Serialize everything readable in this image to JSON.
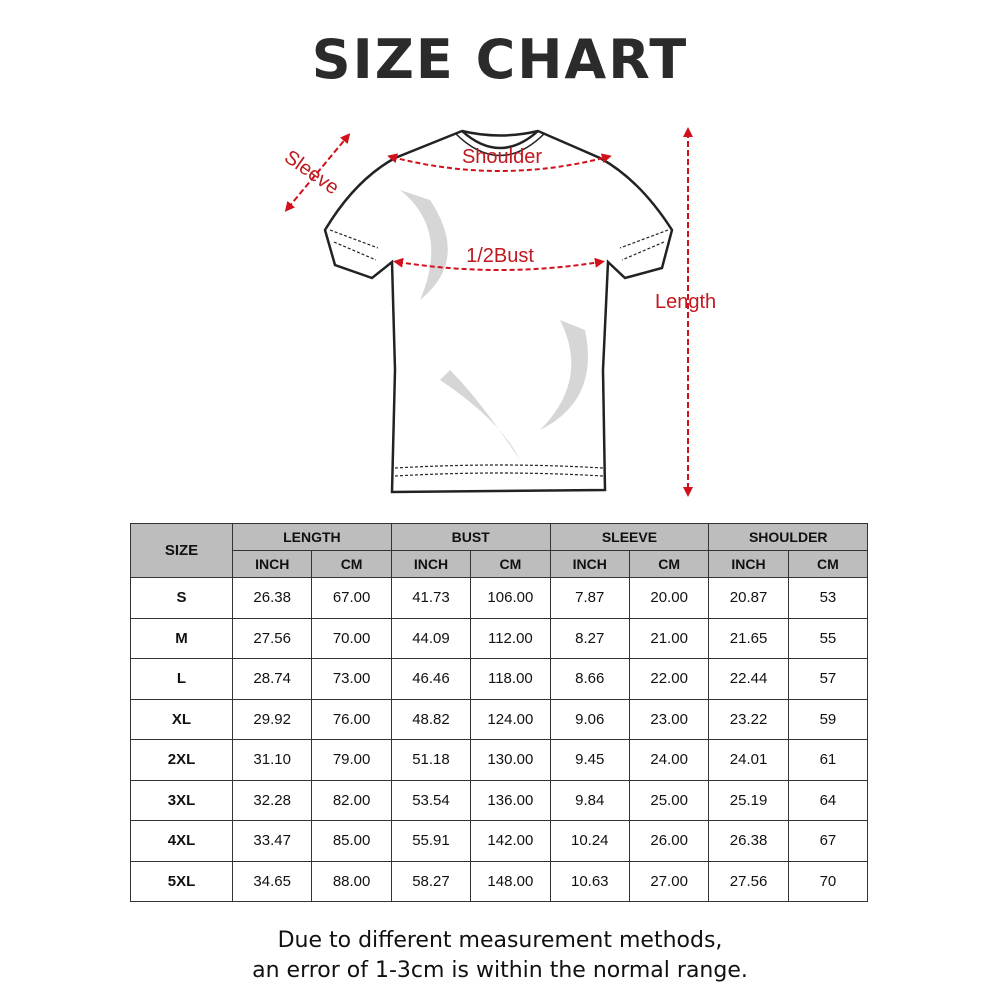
{
  "title": "SIZE CHART",
  "diagram": {
    "sleeve": "Sleeve",
    "shoulder": "Shoulder",
    "bust": "1/2Bust",
    "length": "Length",
    "accent": "#d0101a"
  },
  "table": {
    "size_header": "SIZE",
    "groups": [
      "LENGTH",
      "BUST",
      "SLEEVE",
      "SHOULDER"
    ],
    "units": [
      "INCH",
      "CM",
      "INCH",
      "CM",
      "INCH",
      "CM",
      "INCH",
      "CM"
    ],
    "rows": [
      [
        "S",
        "26.38",
        "67.00",
        "41.73",
        "106.00",
        "7.87",
        "20.00",
        "20.87",
        "53"
      ],
      [
        "M",
        "27.56",
        "70.00",
        "44.09",
        "112.00",
        "8.27",
        "21.00",
        "21.65",
        "55"
      ],
      [
        "L",
        "28.74",
        "73.00",
        "46.46",
        "118.00",
        "8.66",
        "22.00",
        "22.44",
        "57"
      ],
      [
        "XL",
        "29.92",
        "76.00",
        "48.82",
        "124.00",
        "9.06",
        "23.00",
        "23.22",
        "59"
      ],
      [
        "2XL",
        "31.10",
        "79.00",
        "51.18",
        "130.00",
        "9.45",
        "24.00",
        "24.01",
        "61"
      ],
      [
        "3XL",
        "32.28",
        "82.00",
        "53.54",
        "136.00",
        "9.84",
        "25.00",
        "25.19",
        "64"
      ],
      [
        "4XL",
        "33.47",
        "85.00",
        "55.91",
        "142.00",
        "10.24",
        "26.00",
        "26.38",
        "67"
      ],
      [
        "5XL",
        "34.65",
        "88.00",
        "58.27",
        "148.00",
        "10.63",
        "27.00",
        "27.56",
        "70"
      ]
    ]
  },
  "note": [
    "Due to different measurement methods,",
    "an error of 1-3cm is within the normal range."
  ]
}
